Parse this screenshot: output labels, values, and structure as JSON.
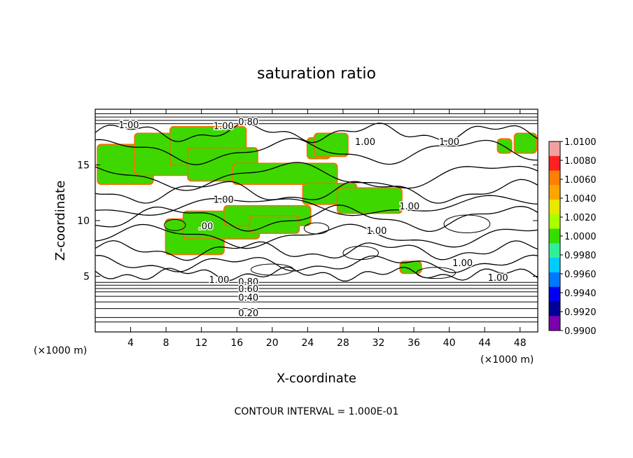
{
  "chart_data": {
    "type": "heatmap",
    "title": "saturation ratio",
    "xlabel": "X-coordinate",
    "ylabel": "Z-coordinate",
    "x_unit": "(×1000 m)",
    "y_unit": "(×1000 m)",
    "xlim": [
      0,
      50
    ],
    "ylim": [
      0,
      20
    ],
    "xticks": [
      "4",
      "8",
      "12",
      "16",
      "20",
      "24",
      "28",
      "32",
      "36",
      "40",
      "44",
      "48"
    ],
    "yticks": [
      "5",
      "10",
      "15"
    ],
    "colorbar": {
      "ticks": [
        "1.0100",
        "1.0080",
        "1.0060",
        "1.0040",
        "1.0020",
        "1.0000",
        "0.9980",
        "0.9960",
        "0.9940",
        "0.9920",
        "0.9900"
      ],
      "colors": [
        "#f2a0a0",
        "#ff2020",
        "#ff8000",
        "#ffa500",
        "#e8e800",
        "#aaff00",
        "#33dd00",
        "#33ee99",
        "#00ccff",
        "#0077ff",
        "#0000ee",
        "#000099",
        "#7a00b0"
      ]
    },
    "contour_labels": [
      {
        "text": "1.00",
        "x": 3.8,
        "z": 18.3
      },
      {
        "text": "1.00",
        "x": 14.5,
        "z": 18.2
      },
      {
        "text": "0.80",
        "x": 17.3,
        "z": 18.6
      },
      {
        "text": "1.00",
        "x": 30.5,
        "z": 16.8
      },
      {
        "text": "1.00",
        "x": 40.0,
        "z": 16.8
      },
      {
        "text": "1.00",
        "x": 14.5,
        "z": 11.6
      },
      {
        "text": "1.00",
        "x": 35.5,
        "z": 11.0
      },
      {
        "text": "1.00",
        "x": 31.8,
        "z": 8.8
      },
      {
        "text": ".00",
        "x": 12.5,
        "z": 9.2
      },
      {
        "text": "1.00",
        "x": 41.5,
        "z": 5.9
      },
      {
        "text": "1.00",
        "x": 45.5,
        "z": 4.6
      },
      {
        "text": "1.00",
        "x": 14.0,
        "z": 4.4
      },
      {
        "text": "0.80",
        "x": 17.3,
        "z": 4.2
      },
      {
        "text": "0.60",
        "x": 17.3,
        "z": 3.6
      },
      {
        "text": "0.40",
        "x": 17.3,
        "z": 2.8
      },
      {
        "text": "0.20",
        "x": 17.3,
        "z": 1.4
      }
    ],
    "green_regions": [
      [
        0.3,
        13.3,
        6.5,
        16.8
      ],
      [
        4.5,
        14.1,
        12.5,
        17.8
      ],
      [
        8.5,
        15.0,
        17.0,
        18.4
      ],
      [
        10.5,
        13.6,
        18.3,
        16.5
      ],
      [
        15.6,
        13.3,
        27.3,
        15.1
      ],
      [
        23.5,
        11.5,
        29.5,
        13.3
      ],
      [
        27.4,
        10.7,
        34.6,
        12.9
      ],
      [
        8.0,
        7.0,
        14.5,
        10.1
      ],
      [
        10.0,
        8.4,
        18.5,
        10.8
      ],
      [
        14.6,
        9.6,
        24.3,
        11.3
      ],
      [
        17.5,
        8.9,
        23.0,
        10.4
      ],
      [
        24.0,
        15.6,
        26.5,
        17.4
      ],
      [
        24.8,
        15.8,
        28.5,
        17.8
      ],
      [
        45.5,
        16.1,
        47.0,
        17.3
      ],
      [
        47.4,
        16.1,
        49.8,
        17.8
      ],
      [
        34.5,
        5.3,
        36.8,
        6.3
      ]
    ],
    "footer": "CONTOUR INTERVAL = 1.000E-01"
  }
}
